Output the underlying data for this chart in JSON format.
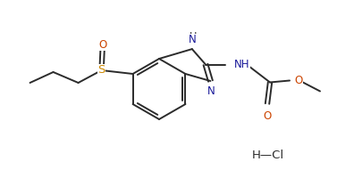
{
  "bg_color": "#ffffff",
  "line_color": "#2b2b2b",
  "atom_colors": {
    "N": "#1a1a9a",
    "O": "#cc4400",
    "S": "#cc8800",
    "H": "#2b2b2b"
  },
  "lw": 1.4,
  "fs": 8.5
}
